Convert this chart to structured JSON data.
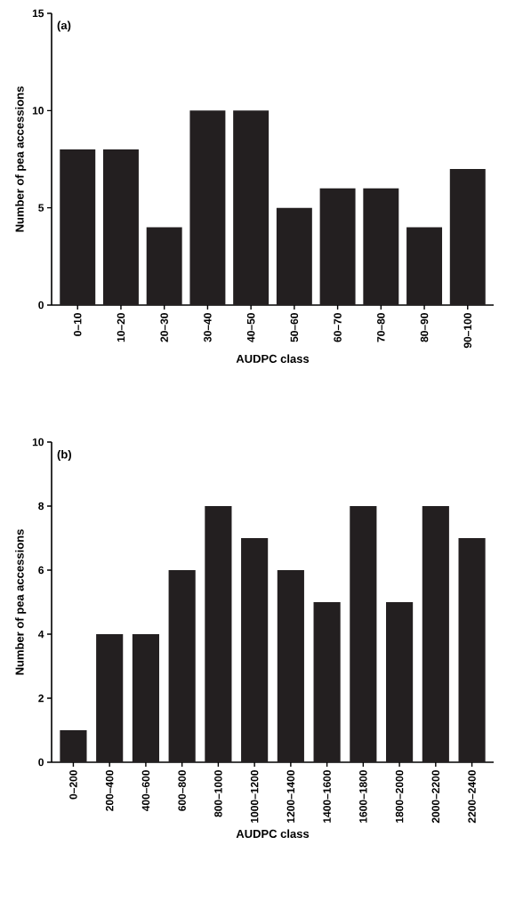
{
  "chart_data": [
    {
      "type": "bar",
      "categories": [
        "0–10",
        "10–20",
        "20–30",
        "30–40",
        "40–50",
        "50–60",
        "60–70",
        "70–80",
        "80–90",
        "90–100"
      ],
      "values": [
        8,
        8,
        4,
        10,
        10,
        5,
        6,
        6,
        4,
        7
      ],
      "color": "#231f20",
      "xlabel": "AUDPC class",
      "ylabel": "Number of pea accessions",
      "ylim": [
        0,
        15
      ],
      "yticks": [
        0,
        5,
        10,
        15
      ],
      "annotations": [
        "(a)"
      ]
    },
    {
      "type": "bar",
      "categories": [
        "0–200",
        "200–400",
        "400–600",
        "600–800",
        "800–1000",
        "1000–1200",
        "1200–1400",
        "1400–1600",
        "1600–1800",
        "1800–2000",
        "2000–2200",
        "2200–2400"
      ],
      "values": [
        1,
        4,
        4,
        6,
        8,
        7,
        6,
        5,
        8,
        5,
        8,
        7
      ],
      "color": "#231f20",
      "xlabel": "AUDPC class",
      "ylabel": "Number of pea accessions",
      "ylim": [
        0,
        10
      ],
      "yticks": [
        0,
        2,
        4,
        6,
        8,
        10
      ],
      "annotations": [
        "(b)"
      ]
    }
  ]
}
